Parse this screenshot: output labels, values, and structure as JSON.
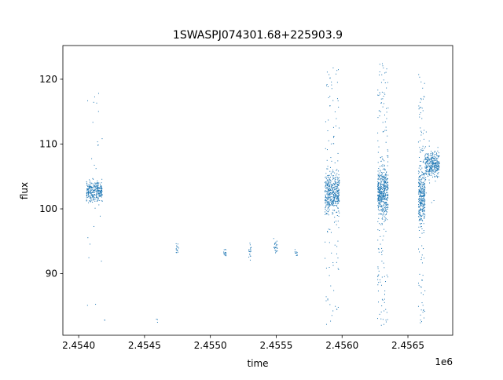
{
  "chart_data": {
    "type": "scatter",
    "title": "1SWASPJ074301.68+225903.9",
    "xlabel": "time",
    "ylabel": "flux",
    "x_offset_label": "1e6",
    "x_ticks": [
      2.454,
      2.4545,
      2.455,
      2.4555,
      2.456,
      2.4565
    ],
    "x_tick_labels": [
      "2.4540",
      "2.4545",
      "2.4550",
      "2.4555",
      "2.4560",
      "2.4565"
    ],
    "y_ticks": [
      90,
      100,
      110,
      120
    ],
    "y_tick_labels": [
      "90",
      "100",
      "110",
      "120"
    ],
    "xlim": [
      2.45388,
      2.45684
    ],
    "ylim": [
      80.5,
      125.2
    ],
    "grid": false,
    "marker_color": "#1f77b4",
    "clusters": [
      {
        "x_range": [
          2.45406,
          2.45418
        ],
        "y_center": 102.7,
        "y_spread": 1.2,
        "outlier_range": [
          85,
          118
        ],
        "n": 300,
        "n_outliers": 25
      },
      {
        "x_range": [
          2.45419,
          2.4542
        ],
        "y_center": 83.0,
        "y_spread": 0.2,
        "outlier_range": [
          83,
          83
        ],
        "n": 2,
        "n_outliers": 0
      },
      {
        "x_range": [
          2.45459,
          2.4546
        ],
        "y_center": 82.7,
        "y_spread": 0.3,
        "outlier_range": [
          82.5,
          83
        ],
        "n": 3,
        "n_outliers": 0
      },
      {
        "x_range": [
          2.45474,
          2.45476
        ],
        "y_center": 93.8,
        "y_spread": 0.6,
        "outlier_range": [
          93,
          95
        ],
        "n": 15,
        "n_outliers": 0
      },
      {
        "x_range": [
          2.4551,
          2.45512
        ],
        "y_center": 93.1,
        "y_spread": 0.5,
        "outlier_range": [
          92,
          94
        ],
        "n": 15,
        "n_outliers": 0
      },
      {
        "x_range": [
          2.45529,
          2.45531
        ],
        "y_center": 93.3,
        "y_spread": 0.8,
        "outlier_range": [
          92,
          95
        ],
        "n": 18,
        "n_outliers": 1
      },
      {
        "x_range": [
          2.45548,
          2.45551
        ],
        "y_center": 94.0,
        "y_spread": 1.0,
        "outlier_range": [
          92,
          96
        ],
        "n": 25,
        "n_outliers": 0
      },
      {
        "x_range": [
          2.45564,
          2.45566
        ],
        "y_center": 93.0,
        "y_spread": 0.4,
        "outlier_range": [
          92.5,
          93.5
        ],
        "n": 10,
        "n_outliers": 0
      },
      {
        "x_range": [
          2.45587,
          2.45598
        ],
        "y_center": 102.5,
        "y_spread": 2.2,
        "outlier_range": [
          82,
          122
        ],
        "n": 400,
        "n_outliers": 120
      },
      {
        "x_range": [
          2.45627,
          2.45635
        ],
        "y_center": 102.5,
        "y_spread": 2.6,
        "outlier_range": [
          82,
          123
        ],
        "n": 450,
        "n_outliers": 150
      },
      {
        "x_range": [
          2.45658,
          2.45663
        ],
        "y_center": 102.0,
        "y_spread": 3.0,
        "outlier_range": [
          82,
          122
        ],
        "n": 300,
        "n_outliers": 100
      },
      {
        "x_range": [
          2.45663,
          2.45674
        ],
        "y_center": 106.8,
        "y_spread": 1.3,
        "outlier_range": [
          100,
          112
        ],
        "n": 300,
        "n_outliers": 20
      }
    ]
  }
}
